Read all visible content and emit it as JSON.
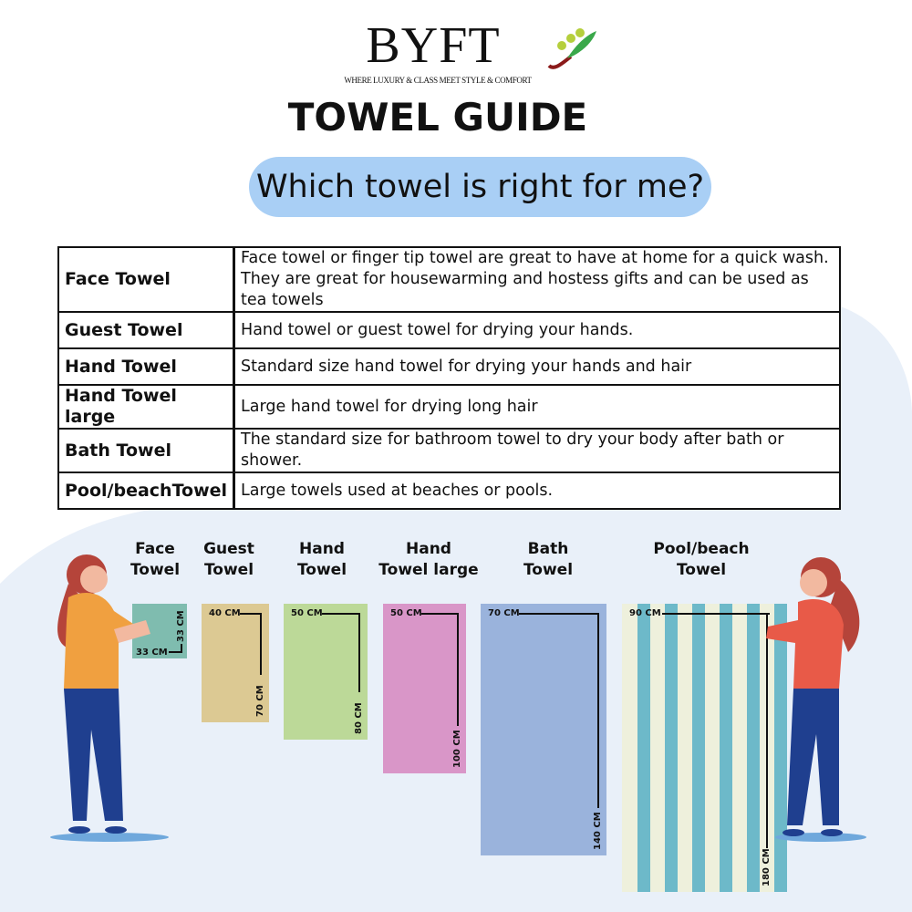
{
  "brand": {
    "name": "BYFT",
    "tagline": "WHERE LUXURY & CLASS MEET STYLE & COMFORT"
  },
  "title": "TOWEL GUIDE",
  "subtitle": "Which towel is right for me?",
  "table": [
    {
      "name": "Face Towel",
      "desc": "Face towel or finger tip towel are great to have at home for a quick wash.",
      "desc2": "They are great for housewarming and hostess gifts and can be used as tea towels"
    },
    {
      "name": "Guest Towel",
      "desc": "Hand towel or guest towel for drying your hands."
    },
    {
      "name": "Hand Towel",
      "desc": "Standard size hand towel for drying your hands and hair"
    },
    {
      "name": "Hand Towel large",
      "desc": "Large hand towel for drying long hair"
    },
    {
      "name": "Bath Towel",
      "desc": "The standard size for bathroom towel to dry your body after bath or shower."
    },
    {
      "name": "Pool/beachTowel",
      "desc": "Large towels used at beaches or pools."
    }
  ],
  "towels": [
    {
      "l1": "Face",
      "l2": "Towel",
      "w": "33 CM",
      "h": "33 CM",
      "color": "#7fbcaf"
    },
    {
      "l1": "Guest",
      "l2": "Towel",
      "w": "40 CM",
      "h": "70 CM",
      "color": "#dcc993"
    },
    {
      "l1": "Hand",
      "l2": "Towel",
      "w": "50 CM",
      "h": "80 CM",
      "color": "#bcd998"
    },
    {
      "l1": "Hand",
      "l2": "Towel large",
      "w": "50 CM",
      "h": "100 CM",
      "color": "#d996c8"
    },
    {
      "l1": "Bath",
      "l2": "Towel",
      "w": "70 CM",
      "h": "140 CM",
      "color": "#9ab3dc"
    },
    {
      "l1": "Pool/beach",
      "l2": "Towel",
      "w": "90 CM",
      "h": "180 CM",
      "color": "#6db9c9"
    }
  ]
}
